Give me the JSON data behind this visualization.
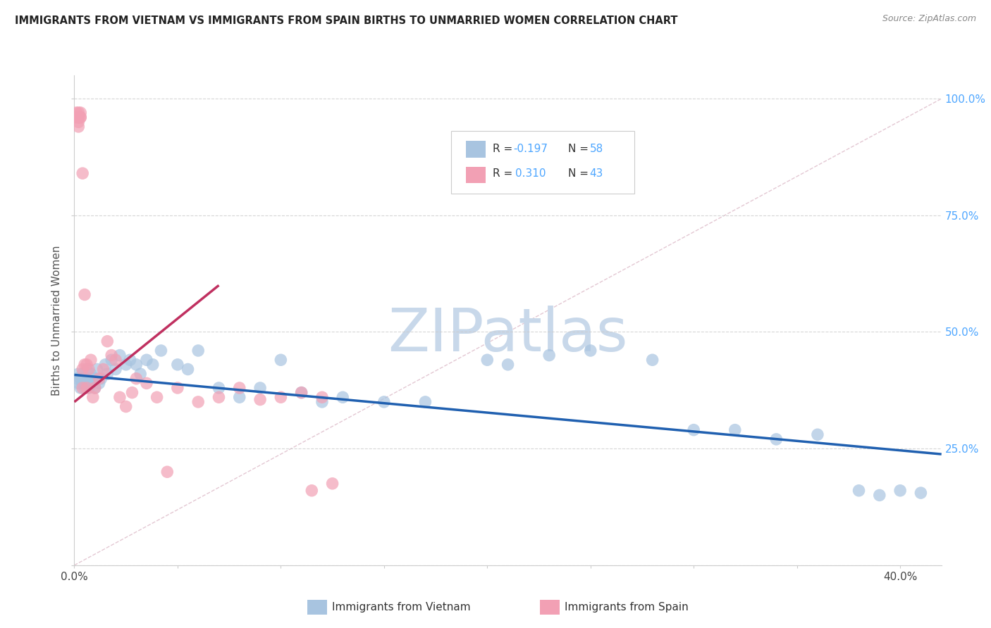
{
  "title": "IMMIGRANTS FROM VIETNAM VS IMMIGRANTS FROM SPAIN BIRTHS TO UNMARRIED WOMEN CORRELATION CHART",
  "source": "Source: ZipAtlas.com",
  "ylabel": "Births to Unmarried Women",
  "xlim": [
    0.0,
    0.42
  ],
  "ylim": [
    0.0,
    1.05
  ],
  "x_ticks": [
    0.0,
    0.05,
    0.1,
    0.15,
    0.2,
    0.25,
    0.3,
    0.35,
    0.4
  ],
  "x_tick_labels": [
    "0.0%",
    "",
    "",
    "",
    "",
    "",
    "",
    "",
    "40.0%"
  ],
  "y_ticks": [
    0.0,
    0.25,
    0.5,
    0.75,
    1.0
  ],
  "y_tick_labels_right": [
    "",
    "25.0%",
    "50.0%",
    "75.0%",
    "100.0%"
  ],
  "vietnam_color": "#a8c4e0",
  "spain_color": "#f2a0b4",
  "vietnam_line_color": "#2060b0",
  "spain_line_color": "#c03060",
  "watermark": "ZIPatlas",
  "watermark_color": "#c8d8ea",
  "vietnam_scatter_x": [
    0.001,
    0.002,
    0.002,
    0.003,
    0.003,
    0.004,
    0.004,
    0.005,
    0.005,
    0.006,
    0.006,
    0.007,
    0.007,
    0.008,
    0.008,
    0.009,
    0.01,
    0.01,
    0.011,
    0.012,
    0.013,
    0.015,
    0.016,
    0.018,
    0.02,
    0.022,
    0.025,
    0.027,
    0.03,
    0.032,
    0.035,
    0.038,
    0.042,
    0.05,
    0.055,
    0.06,
    0.07,
    0.08,
    0.09,
    0.1,
    0.11,
    0.12,
    0.13,
    0.15,
    0.17,
    0.2,
    0.21,
    0.23,
    0.25,
    0.28,
    0.3,
    0.32,
    0.34,
    0.36,
    0.38,
    0.39,
    0.4,
    0.41
  ],
  "vietnam_scatter_y": [
    0.4,
    0.39,
    0.41,
    0.38,
    0.4,
    0.41,
    0.39,
    0.4,
    0.38,
    0.42,
    0.39,
    0.4,
    0.38,
    0.41,
    0.39,
    0.4,
    0.38,
    0.4,
    0.42,
    0.39,
    0.4,
    0.43,
    0.41,
    0.44,
    0.42,
    0.45,
    0.43,
    0.44,
    0.43,
    0.41,
    0.44,
    0.43,
    0.46,
    0.43,
    0.42,
    0.46,
    0.38,
    0.36,
    0.38,
    0.44,
    0.37,
    0.35,
    0.36,
    0.35,
    0.35,
    0.44,
    0.43,
    0.45,
    0.46,
    0.44,
    0.29,
    0.29,
    0.27,
    0.28,
    0.16,
    0.15,
    0.16,
    0.155
  ],
  "spain_scatter_x": [
    0.001,
    0.001,
    0.002,
    0.002,
    0.002,
    0.002,
    0.002,
    0.003,
    0.003,
    0.003,
    0.004,
    0.004,
    0.004,
    0.005,
    0.005,
    0.006,
    0.006,
    0.007,
    0.008,
    0.009,
    0.01,
    0.012,
    0.014,
    0.016,
    0.018,
    0.02,
    0.022,
    0.025,
    0.028,
    0.03,
    0.035,
    0.04,
    0.045,
    0.05,
    0.06,
    0.07,
    0.08,
    0.09,
    0.1,
    0.11,
    0.115,
    0.12,
    0.125
  ],
  "spain_scatter_y": [
    0.96,
    0.97,
    0.96,
    0.94,
    0.95,
    0.97,
    0.96,
    0.96,
    0.97,
    0.96,
    0.84,
    0.38,
    0.42,
    0.43,
    0.58,
    0.38,
    0.43,
    0.42,
    0.44,
    0.36,
    0.38,
    0.4,
    0.42,
    0.48,
    0.45,
    0.44,
    0.36,
    0.34,
    0.37,
    0.4,
    0.39,
    0.36,
    0.2,
    0.38,
    0.35,
    0.36,
    0.38,
    0.355,
    0.36,
    0.37,
    0.16,
    0.36,
    0.175
  ],
  "vietnam_trend_x": [
    0.0,
    0.42
  ],
  "vietnam_trend_y": [
    0.408,
    0.238
  ],
  "spain_trend_x": [
    0.0,
    0.07
  ],
  "spain_trend_y": [
    0.35,
    0.6
  ],
  "ref_line_x": [
    0.0,
    0.42
  ],
  "ref_line_y": [
    0.0,
    1.0
  ]
}
